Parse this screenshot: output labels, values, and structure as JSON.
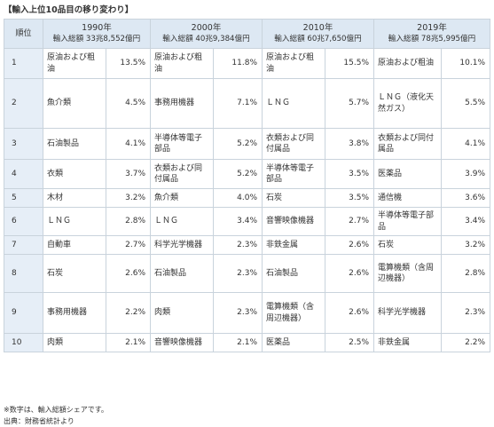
{
  "title": "【輸入上位10品目の移り変わり】",
  "header": {
    "rank_label": "順位",
    "years": [
      {
        "year": "1990年",
        "total": "輸入総額 33兆8,552億円"
      },
      {
        "year": "2000年",
        "total": "輸入総額 40兆9,384億円"
      },
      {
        "year": "2010年",
        "total": "輸入総額 60兆7,650億円"
      },
      {
        "year": "2019年",
        "total": "輸入総額 78兆5,995億円"
      }
    ]
  },
  "rows": [
    {
      "rank": "1",
      "cells": [
        {
          "item": "原油および粗油",
          "share": "13.5%"
        },
        {
          "item": "原油および粗油",
          "share": "11.8%"
        },
        {
          "item": "原油および粗油",
          "share": "15.5%"
        },
        {
          "item": "原油および粗油",
          "share": "10.1%"
        }
      ]
    },
    {
      "rank": "2",
      "cells": [
        {
          "item": "魚介類",
          "share": "4.5%"
        },
        {
          "item": "事務用機器",
          "share": "7.1%"
        },
        {
          "item": "ＬＮＧ",
          "share": "5.7%"
        },
        {
          "item": "ＬＮＧ（液化天然ガス）",
          "share": "5.5%"
        }
      ]
    },
    {
      "rank": "3",
      "cells": [
        {
          "item": "石油製品",
          "share": "4.1%"
        },
        {
          "item": "半導体等電子部品",
          "share": "5.2%"
        },
        {
          "item": "衣類および同付属品",
          "share": "3.8%"
        },
        {
          "item": "衣類および同付属品",
          "share": "4.1%"
        }
      ]
    },
    {
      "rank": "4",
      "cells": [
        {
          "item": "衣類",
          "share": "3.7%"
        },
        {
          "item": "衣類および同付属品",
          "share": "5.2%"
        },
        {
          "item": "半導体等電子部品",
          "share": "3.5%"
        },
        {
          "item": "医薬品",
          "share": "3.9%"
        }
      ]
    },
    {
      "rank": "5",
      "cells": [
        {
          "item": "木材",
          "share": "3.2%"
        },
        {
          "item": "魚介類",
          "share": "4.0%"
        },
        {
          "item": "石炭",
          "share": "3.5%"
        },
        {
          "item": "通信機",
          "share": "3.6%"
        }
      ]
    },
    {
      "rank": "6",
      "cells": [
        {
          "item": "ＬＮＧ",
          "share": "2.8%"
        },
        {
          "item": "ＬＮＧ",
          "share": "3.4%"
        },
        {
          "item": "音響映像機器",
          "share": "2.7%"
        },
        {
          "item": "半導体等電子部品",
          "share": "3.4%"
        }
      ]
    },
    {
      "rank": "7",
      "cells": [
        {
          "item": "自動車",
          "share": "2.7%"
        },
        {
          "item": "科学光学機器",
          "share": "2.3%"
        },
        {
          "item": "非鉄金属",
          "share": "2.6%"
        },
        {
          "item": "石炭",
          "share": "3.2%"
        }
      ]
    },
    {
      "rank": "8",
      "cells": [
        {
          "item": "石炭",
          "share": "2.6%"
        },
        {
          "item": "石油製品",
          "share": "2.3%"
        },
        {
          "item": "石油製品",
          "share": "2.6%"
        },
        {
          "item": "電算機類（含周辺機器）",
          "share": "2.8%"
        }
      ]
    },
    {
      "rank": "9",
      "cells": [
        {
          "item": "事務用機器",
          "share": "2.2%"
        },
        {
          "item": "肉類",
          "share": "2.3%"
        },
        {
          "item": "電算機類（含周辺機器）",
          "share": "2.6%"
        },
        {
          "item": "科学光学機器",
          "share": "2.3%"
        }
      ]
    },
    {
      "rank": "10",
      "cells": [
        {
          "item": "肉類",
          "share": "2.1%"
        },
        {
          "item": "音響映像機器",
          "share": "2.1%"
        },
        {
          "item": "医薬品",
          "share": "2.5%"
        },
        {
          "item": "非鉄金属",
          "share": "2.2%"
        }
      ]
    }
  ],
  "notes": [
    "※数字は、輸入総額シェアです。",
    "出典：財務省統計より"
  ]
}
